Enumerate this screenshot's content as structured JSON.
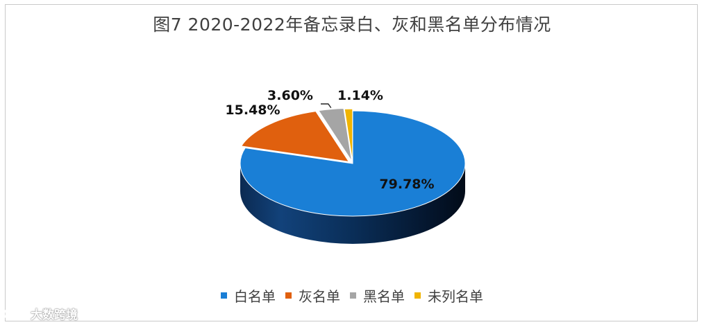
{
  "chart_data": {
    "type": "pie",
    "title": "图7   2020-2022年备忘录白、灰和黑名单分布情况",
    "categories": [
      "白名单",
      "灰名单",
      "黑名单",
      "未列名单"
    ],
    "values": [
      79.78,
      15.48,
      3.6,
      1.14
    ],
    "data_labels": [
      "79.78%",
      "15.48%",
      "3.60%",
      "1.14%"
    ],
    "colors": [
      "#1a7fd6",
      "#e0600e",
      "#a5a5a5",
      "#f0b400"
    ],
    "style": "3d",
    "legend_position": "bottom"
  },
  "watermark": {
    "text": "大数跨境"
  }
}
